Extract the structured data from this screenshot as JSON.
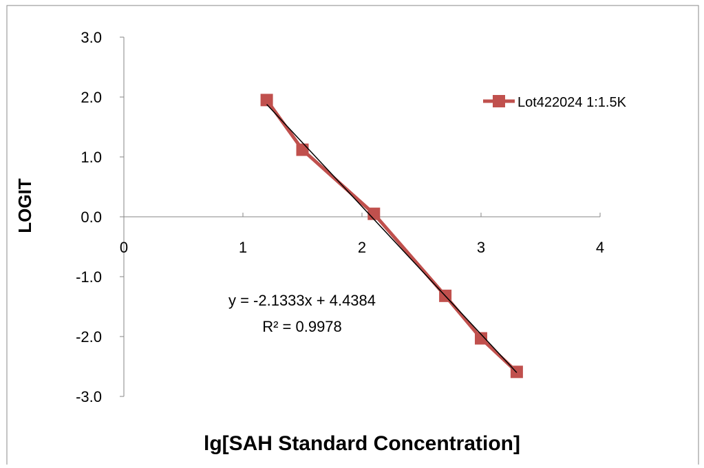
{
  "chart_data": {
    "type": "scatter",
    "title": "",
    "xlabel": "lg[SAH Standard Concentration]",
    "ylabel": "LOGIT",
    "xlim": [
      0,
      4
    ],
    "ylim": [
      -3.0,
      3.0
    ],
    "x_ticks": [
      "0",
      "1",
      "2",
      "3",
      "4"
    ],
    "y_ticks": [
      "-3.0",
      "-2.0",
      "-1.0",
      "0.0",
      "1.0",
      "2.0",
      "3.0"
    ],
    "grid": false,
    "legend_position": "top-right",
    "series": [
      {
        "name": "Lot422024 1:1.5K",
        "color": "#c0504d",
        "marker": "square",
        "x": [
          1.2,
          1.5,
          2.1,
          2.7,
          3.0,
          3.3
        ],
        "y": [
          1.95,
          1.12,
          0.05,
          -1.32,
          -2.03,
          -2.59
        ]
      }
    ],
    "trendline": {
      "color": "#000000",
      "x_range": [
        1.2,
        3.3
      ],
      "slope": -2.1333,
      "intercept": 4.4384,
      "equation": "y = -2.1333x + 4.4384",
      "r_squared": "R² = 0.9978"
    }
  }
}
